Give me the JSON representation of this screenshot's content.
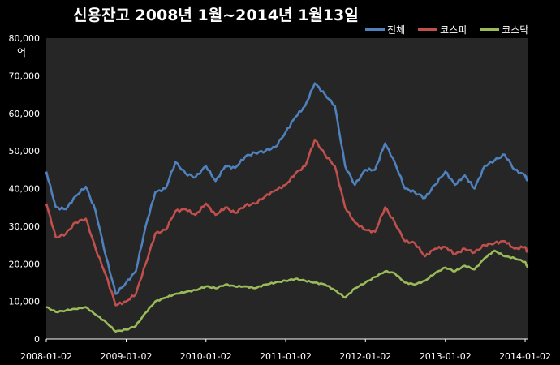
{
  "chart_data": {
    "type": "line",
    "title": "신용잔고 2008년 1월~2014년 1월13일",
    "ylabel": "억",
    "ylim": [
      0,
      80000
    ],
    "yticks": [
      "0",
      "10,000",
      "20,000",
      "30,000",
      "40,000",
      "50,000",
      "60,000",
      "70,000",
      "80,000"
    ],
    "xlim": [
      "2008-01-02",
      "2014-01-13"
    ],
    "xticks": [
      "2008-01-02",
      "2009-01-02",
      "2010-01-02",
      "2011-01-02",
      "2012-01-02",
      "2013-01-02",
      "2014-01-02"
    ],
    "grid": false,
    "legend_position": "top-right",
    "x": [
      "2008-01-02",
      "2008-02-15",
      "2008-04-01",
      "2008-05-15",
      "2008-07-01",
      "2008-08-15",
      "2008-10-01",
      "2008-11-15",
      "2009-01-02",
      "2009-02-15",
      "2009-04-01",
      "2009-05-15",
      "2009-07-01",
      "2009-08-15",
      "2009-10-01",
      "2009-11-15",
      "2010-01-02",
      "2010-02-15",
      "2010-04-01",
      "2010-05-15",
      "2010-07-01",
      "2010-08-15",
      "2010-10-01",
      "2010-11-15",
      "2011-01-02",
      "2011-02-15",
      "2011-04-01",
      "2011-05-15",
      "2011-07-01",
      "2011-08-15",
      "2011-10-01",
      "2011-11-15",
      "2012-01-02",
      "2012-02-15",
      "2012-04-01",
      "2012-05-15",
      "2012-07-01",
      "2012-08-15",
      "2012-10-01",
      "2012-11-15",
      "2013-01-02",
      "2013-02-15",
      "2013-04-01",
      "2013-05-15",
      "2013-07-01",
      "2013-08-15",
      "2013-10-01",
      "2013-11-15",
      "2014-01-02",
      "2014-01-13"
    ],
    "series": [
      {
        "name": "전체",
        "color": "#4f81bd",
        "values": [
          44500,
          35000,
          34500,
          38000,
          40500,
          34000,
          22000,
          12000,
          15000,
          18000,
          30000,
          39000,
          40000,
          47000,
          44000,
          43000,
          46000,
          42000,
          46000,
          45500,
          48500,
          49500,
          50000,
          51000,
          55000,
          59000,
          62000,
          68000,
          65000,
          62000,
          46000,
          41000,
          45000,
          45000,
          52000,
          47000,
          40000,
          39000,
          37500,
          41000,
          44500,
          41000,
          43500,
          40000,
          46000,
          47500,
          49000,
          45000,
          43500,
          42000
        ]
      },
      {
        "name": "코스피",
        "color": "#c0504d",
        "values": [
          36000,
          27000,
          28000,
          31000,
          32000,
          24000,
          17000,
          9000,
          10000,
          12000,
          20000,
          28000,
          29000,
          34000,
          34500,
          33000,
          36000,
          33000,
          35000,
          33500,
          35500,
          36000,
          38000,
          39500,
          41000,
          44000,
          46000,
          53000,
          49000,
          46000,
          35000,
          31000,
          29000,
          28500,
          35000,
          31000,
          26000,
          25500,
          22000,
          24000,
          24500,
          22500,
          24000,
          23000,
          25000,
          25500,
          26000,
          24000,
          24500,
          23000
        ]
      },
      {
        "name": "코스닥",
        "color": "#9bbb59",
        "values": [
          8500,
          7200,
          7600,
          8000,
          8500,
          6500,
          4500,
          2000,
          2500,
          3500,
          7000,
          10000,
          11000,
          12000,
          12500,
          13000,
          14000,
          13500,
          14500,
          14000,
          14000,
          13500,
          14500,
          15000,
          15500,
          16000,
          15500,
          15000,
          14500,
          13000,
          11000,
          13500,
          15000,
          16500,
          18000,
          17500,
          15000,
          14500,
          15500,
          17500,
          19000,
          18000,
          19500,
          18500,
          21500,
          23500,
          22000,
          21500,
          20500,
          19000
        ]
      }
    ]
  }
}
